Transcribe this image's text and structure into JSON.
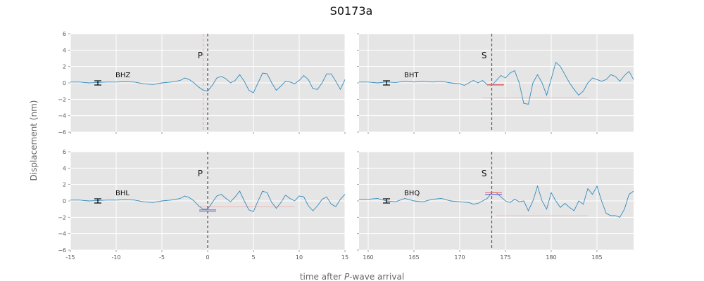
{
  "title": "S0173a",
  "ylabel": "Displacement (nm)",
  "xlabel": "time after P-wave arrival",
  "xlabel_parts": [
    "time after ",
    "P",
    "-wave arrival"
  ],
  "colors": {
    "background": "#e5e5e5",
    "trace": "#348abd",
    "arrival_line": "#555555",
    "pick_line": "#f4a0a0",
    "noise_bar": "#000000",
    "marker_blue": "#6a6ad0",
    "marker_red": "#e86a6a"
  },
  "chart_data": [
    {
      "type": "line",
      "channel": "BHZ",
      "phase": "P",
      "xlim": [
        -15,
        15
      ],
      "ylim": [
        -6,
        6
      ],
      "xticks": [
        "-15",
        "-10",
        "-5",
        "0",
        "5",
        "10",
        "15"
      ],
      "yticks": [
        "6",
        "4",
        "2",
        "0",
        "−2",
        "−4",
        "−6"
      ],
      "grid": true,
      "arrival_x": 0,
      "pick_x": -0.5,
      "noise_x": -12,
      "x": [
        -15,
        -14,
        -13,
        -12,
        -11,
        -10,
        -9,
        -8,
        -7,
        -6,
        -5,
        -4,
        -3,
        -2.5,
        -2,
        -1.5,
        -1,
        -0.5,
        0,
        0.5,
        1,
        1.5,
        2,
        2.5,
        3,
        3.5,
        4,
        4.5,
        5,
        5.5,
        6,
        6.5,
        7,
        7.5,
        8,
        8.5,
        9,
        9.5,
        10,
        10.5,
        11,
        11.5,
        12,
        12.5,
        13,
        13.5,
        14,
        14.5,
        15
      ],
      "y": [
        0.1,
        0.1,
        0,
        0.05,
        0.1,
        0.1,
        0.15,
        0.1,
        -0.1,
        -0.2,
        0,
        0.1,
        0.3,
        0.6,
        0.4,
        0,
        -0.5,
        -0.9,
        -1,
        -0.3,
        0.6,
        0.8,
        0.5,
        0,
        0.3,
        1,
        0.2,
        -0.9,
        -1.2,
        0,
        1.2,
        1.1,
        0,
        -0.9,
        -0.4,
        0.2,
        0.1,
        -0.1,
        0.3,
        0.9,
        0.4,
        -0.7,
        -0.8,
        0,
        1.1,
        1.1,
        0.2,
        -0.8,
        0.4
      ]
    },
    {
      "type": "line",
      "channel": "BHT",
      "phase": "S",
      "xlim": [
        159,
        189
      ],
      "ylim": [
        -6,
        6
      ],
      "xticks": [
        "160",
        "165",
        "170",
        "175",
        "180",
        "185"
      ],
      "yticks": [
        "6",
        "4",
        "2",
        "0",
        "−2",
        "−4",
        "−6"
      ],
      "grid": true,
      "arrival_x": 173.5,
      "noise_x": 162,
      "markers": [
        {
          "x": 173.9,
          "y": -0.25,
          "color": "blue"
        },
        {
          "x": 173.9,
          "y": -0.2,
          "color": "red"
        }
      ],
      "guide": {
        "x1": 172.5,
        "x2": 184,
        "y": -1.8
      },
      "x": [
        159,
        160,
        161,
        162,
        163,
        164,
        165,
        166,
        167,
        168,
        169,
        170,
        170.5,
        171,
        171.5,
        172,
        172.5,
        173,
        173.5,
        174,
        174.5,
        175,
        175.5,
        176,
        176.5,
        177,
        177.5,
        178,
        178.5,
        179,
        179.5,
        180,
        180.5,
        181,
        181.5,
        182,
        182.5,
        183,
        183.5,
        184,
        184.5,
        185,
        185.5,
        186,
        186.5,
        187,
        187.5,
        188,
        188.5,
        189
      ],
      "y": [
        0.1,
        0.1,
        0,
        0.1,
        0.05,
        0.2,
        0.1,
        0.2,
        0.1,
        0.2,
        0,
        -0.1,
        -0.3,
        0,
        0.3,
        0,
        0.3,
        -0.2,
        -0.3,
        0.3,
        0.9,
        0.6,
        1.2,
        1.5,
        0,
        -2.5,
        -2.6,
        0,
        1,
        0,
        -1.5,
        0.5,
        2.5,
        2,
        1,
        0,
        -0.8,
        -1.5,
        -1,
        0,
        0.6,
        0.4,
        0.2,
        0.4,
        1,
        0.8,
        0.2,
        0.9,
        1.4,
        0.4
      ]
    },
    {
      "type": "line",
      "channel": "BHL",
      "phase": "P",
      "xlim": [
        -15,
        15
      ],
      "ylim": [
        -6,
        6
      ],
      "xticks": [
        "-15",
        "-10",
        "-5",
        "0",
        "5",
        "10",
        "15"
      ],
      "yticks": [
        "6",
        "4",
        "2",
        "0",
        "−2",
        "−4",
        "−6"
      ],
      "grid": true,
      "arrival_x": 0,
      "noise_x": -12,
      "markers": [
        {
          "x": 0,
          "y": -1.1,
          "color": "blue"
        },
        {
          "x": 0,
          "y": -1.3,
          "color": "red"
        }
      ],
      "guide": {
        "x1": -1,
        "x2": 9.5,
        "y": -0.7
      },
      "x": [
        -15,
        -14,
        -13,
        -12,
        -11,
        -10,
        -9,
        -8,
        -7,
        -6,
        -5,
        -4,
        -3,
        -2.5,
        -2,
        -1.5,
        -1,
        -0.5,
        0,
        0.5,
        1,
        1.5,
        2,
        2.5,
        3,
        3.5,
        4,
        4.5,
        5,
        5.5,
        6,
        6.5,
        7,
        7.5,
        8,
        8.5,
        9,
        9.5,
        10,
        10.5,
        11,
        11.5,
        12,
        12.5,
        13,
        13.5,
        14,
        14.5,
        15
      ],
      "y": [
        0.1,
        0.1,
        0,
        0.05,
        0.1,
        0.1,
        0.15,
        0.1,
        -0.1,
        -0.2,
        0,
        0.1,
        0.3,
        0.6,
        0.4,
        0,
        -0.6,
        -1,
        -1,
        -0.2,
        0.6,
        0.8,
        0.3,
        -0.1,
        0.5,
        1.2,
        0,
        -1.1,
        -1.3,
        0,
        1.2,
        1,
        -0.2,
        -0.9,
        -0.2,
        0.7,
        0.3,
        0,
        0.6,
        0.5,
        -0.6,
        -1.2,
        -0.6,
        0.2,
        0.5,
        -0.4,
        -0.7,
        0.2,
        0.8
      ]
    },
    {
      "type": "line",
      "channel": "BHQ",
      "phase": "S",
      "xlim": [
        159,
        189
      ],
      "ylim": [
        -6,
        6
      ],
      "xticks": [
        "160",
        "165",
        "170",
        "175",
        "180",
        "185"
      ],
      "yticks": [
        "6",
        "4",
        "2",
        "0",
        "−2",
        "−4",
        "−6"
      ],
      "grid": true,
      "arrival_x": 173.5,
      "noise_x": 162,
      "markers": [
        {
          "x": 173.7,
          "y": 0.8,
          "color": "blue"
        },
        {
          "x": 173.7,
          "y": 1.0,
          "color": "red"
        }
      ],
      "guide": {
        "x1": 174,
        "x2": 184,
        "y": -1.8
      },
      "x": [
        159,
        160,
        161,
        162,
        163,
        164,
        165,
        166,
        167,
        168,
        169,
        170,
        171,
        171.5,
        172,
        172.5,
        173,
        173.5,
        174,
        174.5,
        175,
        175.5,
        176,
        176.5,
        177,
        177.5,
        178,
        178.5,
        179,
        179.5,
        180,
        180.5,
        181,
        181.5,
        182,
        182.5,
        183,
        183.5,
        184,
        184.5,
        185,
        185.5,
        186,
        186.5,
        187,
        187.5,
        188,
        188.5,
        189
      ],
      "y": [
        0.2,
        0.2,
        0.3,
        0,
        -0.1,
        0.3,
        0,
        -0.1,
        0.2,
        0.3,
        0,
        -0.1,
        -0.2,
        -0.4,
        -0.3,
        0,
        0.3,
        1,
        1,
        0.5,
        0,
        -0.2,
        0.2,
        -0.1,
        0,
        -1.2,
        0,
        1.8,
        0,
        -1,
        1,
        0,
        -0.8,
        -0.3,
        -0.8,
        -1.2,
        0,
        -0.4,
        1.5,
        0.8,
        1.8,
        0,
        -1.5,
        -1.8,
        -1.8,
        -2,
        -1,
        0.8,
        1.2
      ]
    }
  ]
}
